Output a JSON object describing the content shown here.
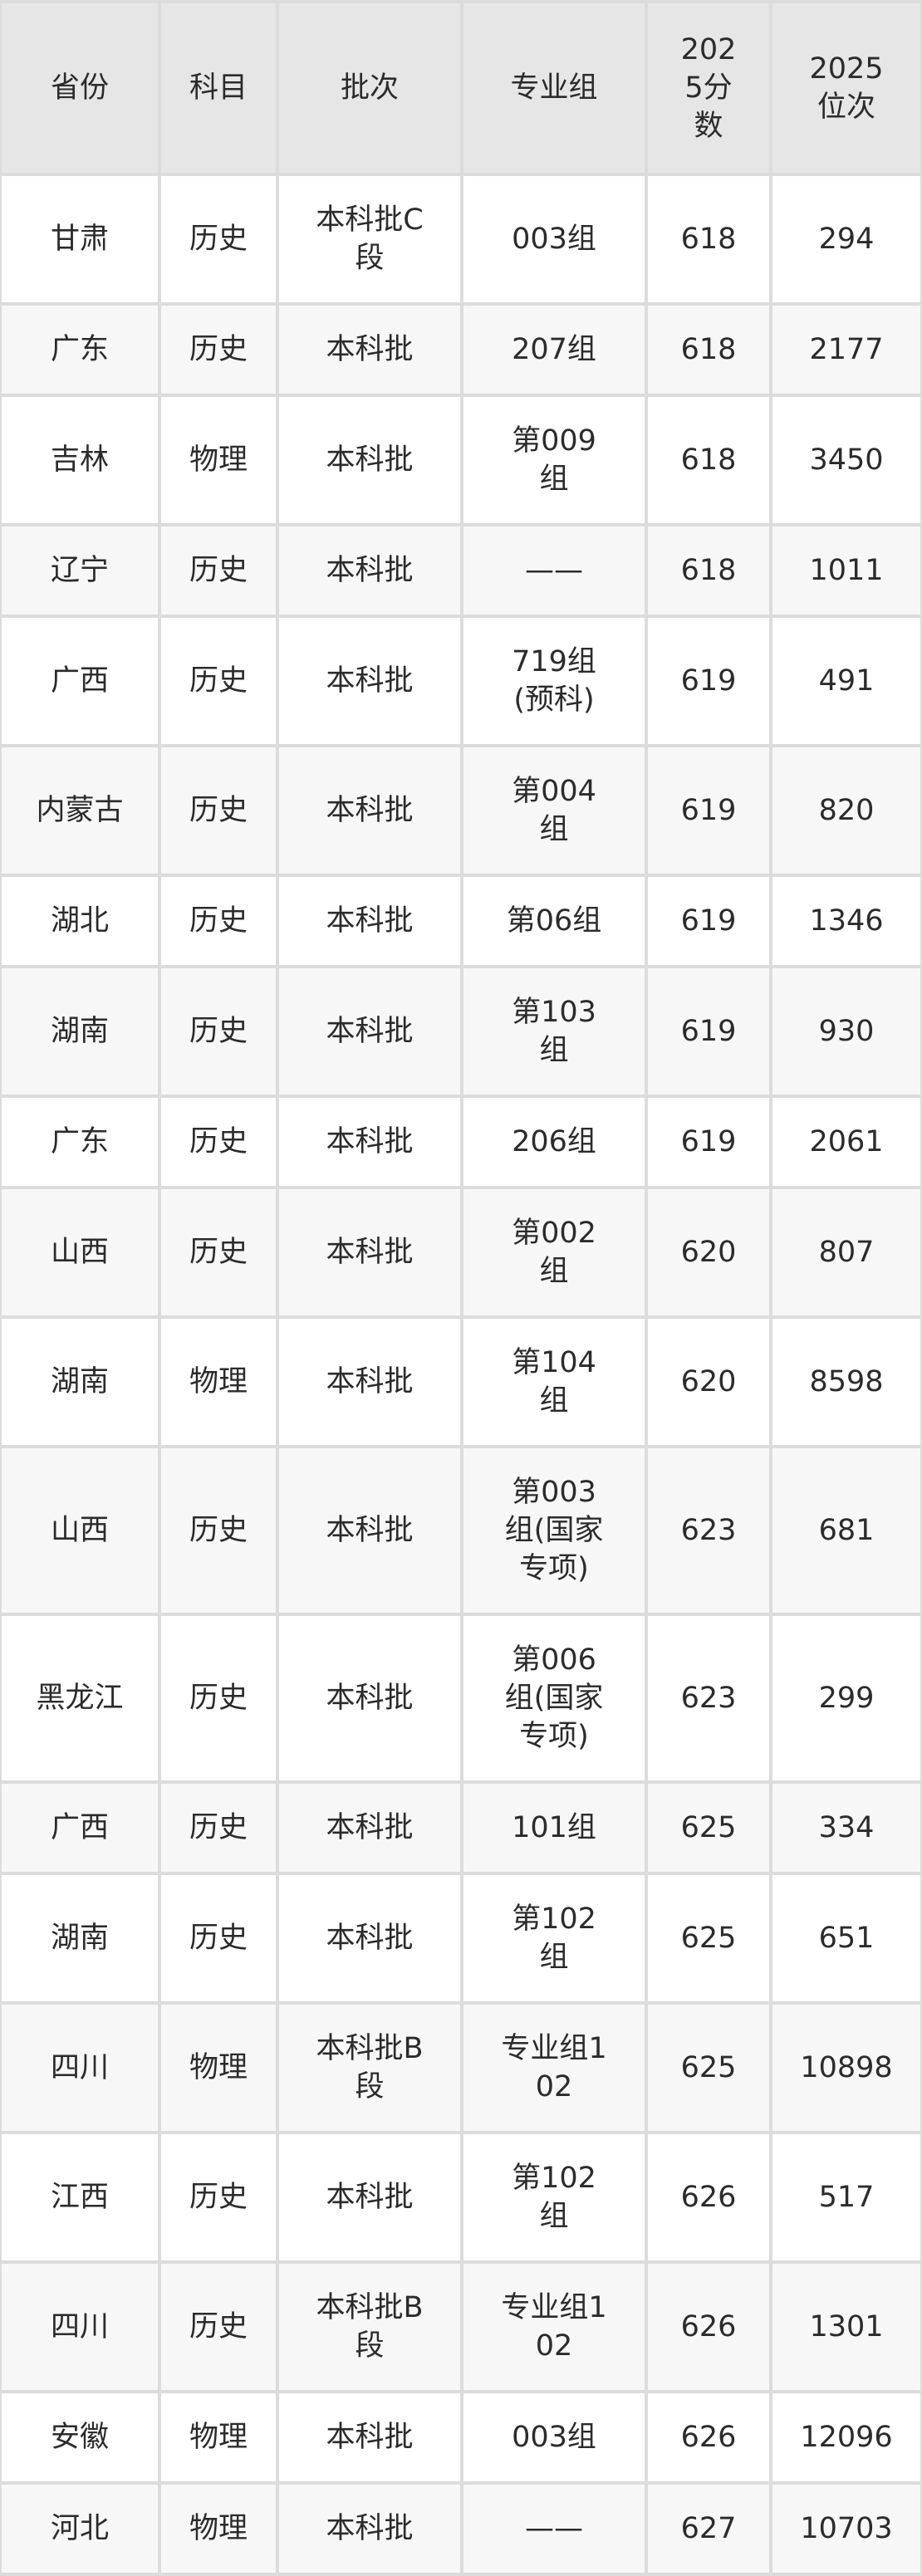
{
  "table": {
    "headers": [
      "省份",
      "科目",
      "批次",
      "专业组",
      "2025分数",
      "2025位次"
    ],
    "rows": [
      [
        "甘肃",
        "历史",
        "本科批C段",
        "003组",
        "618",
        "294"
      ],
      [
        "广东",
        "历史",
        "本科批",
        "207组",
        "618",
        "2177"
      ],
      [
        "吉林",
        "物理",
        "本科批",
        "第009组",
        "618",
        "3450"
      ],
      [
        "辽宁",
        "历史",
        "本科批",
        "——",
        "618",
        "1011"
      ],
      [
        "广西",
        "历史",
        "本科批",
        "719组(预科)",
        "619",
        "491"
      ],
      [
        "内蒙古",
        "历史",
        "本科批",
        "第004组",
        "619",
        "820"
      ],
      [
        "湖北",
        "历史",
        "本科批",
        "第06组",
        "619",
        "1346"
      ],
      [
        "湖南",
        "历史",
        "本科批",
        "第103组",
        "619",
        "930"
      ],
      [
        "广东",
        "历史",
        "本科批",
        "206组",
        "619",
        "2061"
      ],
      [
        "山西",
        "历史",
        "本科批",
        "第002组",
        "620",
        "807"
      ],
      [
        "湖南",
        "物理",
        "本科批",
        "第104组",
        "620",
        "8598"
      ],
      [
        "山西",
        "历史",
        "本科批",
        "第003组(国家专项)",
        "623",
        "681"
      ],
      [
        "黑龙江",
        "历史",
        "本科批",
        "第006组(国家专项)",
        "623",
        "299"
      ],
      [
        "广西",
        "历史",
        "本科批",
        "101组",
        "625",
        "334"
      ],
      [
        "湖南",
        "历史",
        "本科批",
        "第102组",
        "625",
        "651"
      ],
      [
        "四川",
        "物理",
        "本科批B段",
        "专业组102",
        "625",
        "10898"
      ],
      [
        "江西",
        "历史",
        "本科批",
        "第102组",
        "626",
        "517"
      ],
      [
        "四川",
        "历史",
        "本科批B段",
        "专业组102",
        "626",
        "1301"
      ],
      [
        "安徽",
        "物理",
        "本科批",
        "003组",
        "626",
        "12096"
      ],
      [
        "河北",
        "物理",
        "本科批",
        "——",
        "627",
        "10703"
      ]
    ]
  }
}
